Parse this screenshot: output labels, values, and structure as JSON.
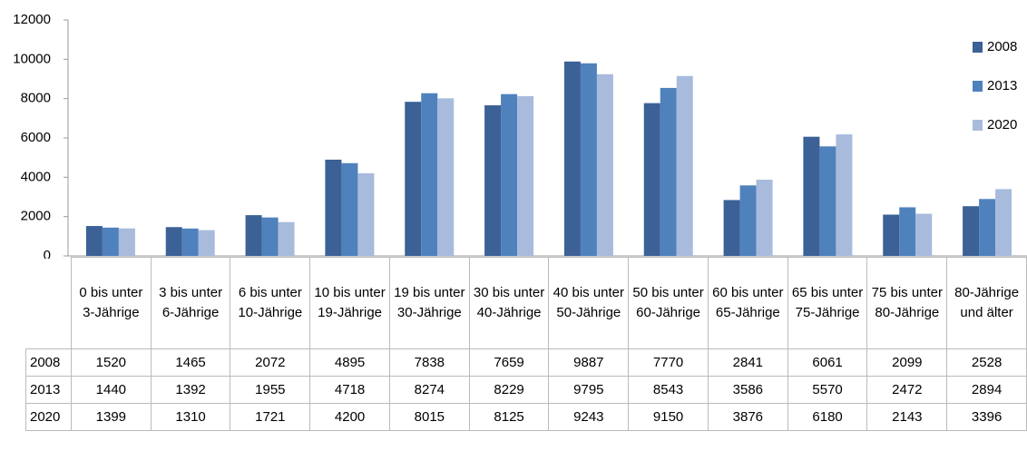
{
  "chart_data": {
    "type": "bar",
    "categories": [
      "0 bis unter 3-Jährige",
      "3 bis unter 6-Jährige",
      "6 bis unter 10-Jährige",
      "10 bis unter 19-Jährige",
      "19 bis unter 30-Jährige",
      "30 bis unter 40-Jährige",
      "40 bis unter 50-Jährige",
      "50 bis unter 60-Jährige",
      "60 bis unter 65-Jährige",
      "65 bis unter 75-Jährige",
      "75 bis unter 80-Jährige",
      "80-Jährige und älter"
    ],
    "series": [
      {
        "name": "2008",
        "color": "#3b6196",
        "values": [
          1520,
          1465,
          2072,
          4895,
          7838,
          7659,
          9887,
          7770,
          2841,
          6061,
          2099,
          2528
        ]
      },
      {
        "name": "2013",
        "color": "#4f81bd",
        "values": [
          1440,
          1392,
          1955,
          4718,
          8274,
          8229,
          9795,
          8543,
          3586,
          5570,
          2472,
          2894
        ]
      },
      {
        "name": "2020",
        "color": "#a8bbdc",
        "values": [
          1399,
          1310,
          1721,
          4200,
          8015,
          8125,
          9243,
          9150,
          3876,
          6180,
          2143,
          3396
        ]
      }
    ],
    "ylim": [
      0,
      12000
    ],
    "yticks": [
      0,
      2000,
      4000,
      6000,
      8000,
      10000,
      12000
    ],
    "grid": false,
    "legend": "right"
  }
}
